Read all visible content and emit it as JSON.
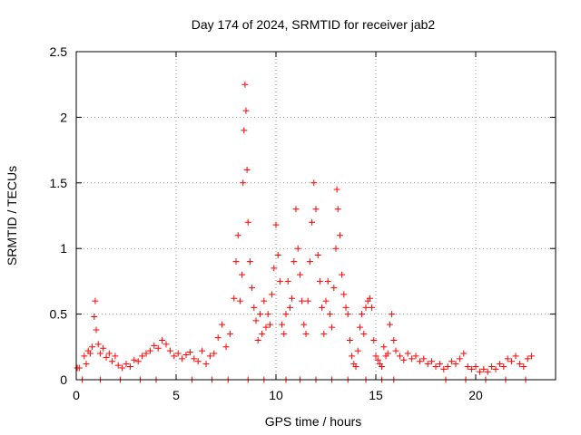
{
  "chart_data": {
    "type": "scatter",
    "title": "Day 174 of 2024, SRMTID for receiver jab2",
    "xlabel": "GPS time / hours",
    "ylabel": "SRMTID / TECUs",
    "xlim": [
      0,
      24
    ],
    "ylim": [
      0,
      2.5
    ],
    "xticks": [
      0,
      5,
      10,
      15,
      20
    ],
    "xtick_labels": [
      "0",
      "5",
      "10",
      "15",
      "20"
    ],
    "yticks": [
      0,
      0.5,
      1,
      1.5,
      2,
      2.5
    ],
    "ytick_labels": [
      "0",
      "0.5",
      "1",
      "1.5",
      "2",
      "2.5"
    ],
    "grid": true,
    "series": [
      {
        "name": "jab2",
        "marker": "+",
        "color": "#ff0000",
        "points": [
          [
            0.05,
            0.09
          ],
          [
            0.15,
            0.09
          ],
          [
            0.3,
            0.0
          ],
          [
            0.4,
            0.18
          ],
          [
            0.5,
            0.12
          ],
          [
            0.6,
            0.22
          ],
          [
            0.7,
            0.2
          ],
          [
            0.8,
            0.25
          ],
          [
            0.9,
            0.48
          ],
          [
            0.95,
            0.6
          ],
          [
            1.0,
            0.38
          ],
          [
            1.1,
            0.27
          ],
          [
            1.2,
            0.2
          ],
          [
            1.35,
            0.24
          ],
          [
            1.5,
            0.17
          ],
          [
            1.65,
            0.2
          ],
          [
            1.8,
            0.14
          ],
          [
            1.95,
            0.18
          ],
          [
            2.1,
            0.11
          ],
          [
            2.3,
            0.09
          ],
          [
            2.5,
            0.12
          ],
          [
            2.7,
            0.1
          ],
          [
            2.9,
            0.15
          ],
          [
            3.1,
            0.14
          ],
          [
            3.3,
            0.18
          ],
          [
            3.5,
            0.2
          ],
          [
            3.7,
            0.22
          ],
          [
            3.9,
            0.26
          ],
          [
            4.1,
            0.24
          ],
          [
            4.3,
            0.3
          ],
          [
            4.5,
            0.27
          ],
          [
            4.7,
            0.22
          ],
          [
            4.9,
            0.18
          ],
          [
            5.1,
            0.2
          ],
          [
            5.3,
            0.16
          ],
          [
            5.5,
            0.19
          ],
          [
            5.7,
            0.21
          ],
          [
            5.9,
            0.16
          ],
          [
            6.1,
            0.14
          ],
          [
            6.3,
            0.22
          ],
          [
            6.5,
            0.12
          ],
          [
            6.7,
            0.18
          ],
          [
            6.9,
            0.2
          ],
          [
            7.1,
            0.32
          ],
          [
            7.3,
            0.42
          ],
          [
            7.5,
            0.25
          ],
          [
            7.7,
            0.35
          ],
          [
            7.9,
            0.62
          ],
          [
            8.0,
            0.9
          ],
          [
            8.1,
            1.1
          ],
          [
            8.2,
            0.6
          ],
          [
            8.3,
            0.8
          ],
          [
            8.35,
            1.5
          ],
          [
            8.4,
            1.9
          ],
          [
            8.45,
            2.25
          ],
          [
            8.5,
            2.05
          ],
          [
            8.55,
            1.6
          ],
          [
            8.6,
            1.2
          ],
          [
            8.7,
            0.9
          ],
          [
            8.8,
            0.7
          ],
          [
            8.9,
            0.55
          ],
          [
            9.0,
            0.45
          ],
          [
            9.1,
            0.3
          ],
          [
            9.2,
            0.5
          ],
          [
            9.3,
            0.35
          ],
          [
            9.4,
            0.6
          ],
          [
            9.5,
            0.4
          ],
          [
            9.6,
            0.5
          ],
          [
            9.7,
            0.42
          ],
          [
            9.8,
            0.65
          ],
          [
            9.9,
            0.85
          ],
          [
            10.0,
            1.18
          ],
          [
            10.1,
            0.95
          ],
          [
            10.2,
            0.75
          ],
          [
            10.3,
            0.42
          ],
          [
            10.4,
            0.35
          ],
          [
            10.5,
            0.5
          ],
          [
            10.6,
            0.75
          ],
          [
            10.7,
            0.55
          ],
          [
            10.8,
            0.62
          ],
          [
            10.9,
            0.9
          ],
          [
            11.0,
            1.3
          ],
          [
            11.1,
            1.0
          ],
          [
            11.2,
            0.8
          ],
          [
            11.3,
            0.6
          ],
          [
            11.4,
            0.42
          ],
          [
            11.5,
            0.35
          ],
          [
            11.6,
            0.6
          ],
          [
            11.7,
            0.9
          ],
          [
            11.8,
            1.2
          ],
          [
            11.9,
            1.5
          ],
          [
            12.0,
            1.3
          ],
          [
            12.1,
            0.95
          ],
          [
            12.2,
            0.75
          ],
          [
            12.3,
            0.55
          ],
          [
            12.4,
            0.35
          ],
          [
            12.5,
            0.6
          ],
          [
            12.6,
            0.75
          ],
          [
            12.7,
            0.5
          ],
          [
            12.8,
            0.4
          ],
          [
            12.9,
            0.7
          ],
          [
            13.0,
            1.0
          ],
          [
            13.05,
            1.45
          ],
          [
            13.1,
            1.3
          ],
          [
            13.2,
            1.1
          ],
          [
            13.3,
            0.8
          ],
          [
            13.4,
            0.65
          ],
          [
            13.5,
            0.55
          ],
          [
            13.6,
            0.5
          ],
          [
            13.7,
            0.3
          ],
          [
            13.8,
            0.18
          ],
          [
            13.9,
            0.12
          ],
          [
            14.0,
            0.1
          ],
          [
            14.1,
            0.22
          ],
          [
            14.2,
            0.4
          ],
          [
            14.3,
            0.5
          ],
          [
            14.4,
            0.35
          ],
          [
            14.5,
            0.55
          ],
          [
            14.6,
            0.6
          ],
          [
            14.7,
            0.62
          ],
          [
            14.8,
            0.55
          ],
          [
            14.9,
            0.3
          ],
          [
            15.0,
            0.18
          ],
          [
            15.1,
            0.15
          ],
          [
            15.2,
            0.12
          ],
          [
            15.3,
            0.1
          ],
          [
            15.4,
            0.25
          ],
          [
            15.5,
            0.18
          ],
          [
            15.6,
            0.2
          ],
          [
            15.7,
            0.42
          ],
          [
            15.8,
            0.5
          ],
          [
            15.9,
            0.3
          ],
          [
            16.0,
            0.22
          ],
          [
            16.2,
            0.18
          ],
          [
            16.4,
            0.15
          ],
          [
            16.6,
            0.2
          ],
          [
            16.8,
            0.16
          ],
          [
            17.0,
            0.18
          ],
          [
            17.2,
            0.14
          ],
          [
            17.4,
            0.16
          ],
          [
            17.6,
            0.12
          ],
          [
            17.8,
            0.14
          ],
          [
            18.0,
            0.1
          ],
          [
            18.2,
            0.12
          ],
          [
            18.4,
            0.08
          ],
          [
            18.6,
            0.1
          ],
          [
            18.8,
            0.14
          ],
          [
            19.0,
            0.12
          ],
          [
            19.2,
            0.16
          ],
          [
            19.4,
            0.2
          ],
          [
            19.6,
            0.1
          ],
          [
            19.8,
            0.08
          ],
          [
            20.0,
            0.1
          ],
          [
            20.2,
            0.06
          ],
          [
            20.4,
            0.08
          ],
          [
            20.6,
            0.06
          ],
          [
            20.8,
            0.1
          ],
          [
            21.0,
            0.08
          ],
          [
            21.2,
            0.12
          ],
          [
            21.4,
            0.1
          ],
          [
            21.6,
            0.16
          ],
          [
            21.8,
            0.14
          ],
          [
            22.0,
            0.18
          ],
          [
            22.2,
            0.12
          ],
          [
            22.4,
            0.1
          ],
          [
            22.6,
            0.16
          ],
          [
            22.8,
            0.18
          ],
          [
            1.2,
            0.0
          ],
          [
            2.2,
            0.0
          ],
          [
            3.2,
            0.0
          ],
          [
            4.0,
            0.0
          ],
          [
            5.8,
            0.0
          ],
          [
            6.8,
            0.0
          ],
          [
            7.6,
            0.0
          ],
          [
            8.6,
            0.0
          ],
          [
            9.4,
            0.0
          ],
          [
            10.5,
            0.0
          ],
          [
            11.2,
            0.0
          ],
          [
            12.0,
            0.0
          ],
          [
            12.8,
            0.0
          ],
          [
            13.6,
            0.0
          ],
          [
            14.5,
            0.0
          ],
          [
            15.3,
            0.0
          ],
          [
            15.9,
            0.0
          ],
          [
            18.5,
            0.0
          ],
          [
            19.5,
            0.0
          ],
          [
            20.5,
            0.0
          ],
          [
            21.5,
            0.0
          ],
          [
            22.5,
            0.0
          ]
        ]
      }
    ]
  }
}
